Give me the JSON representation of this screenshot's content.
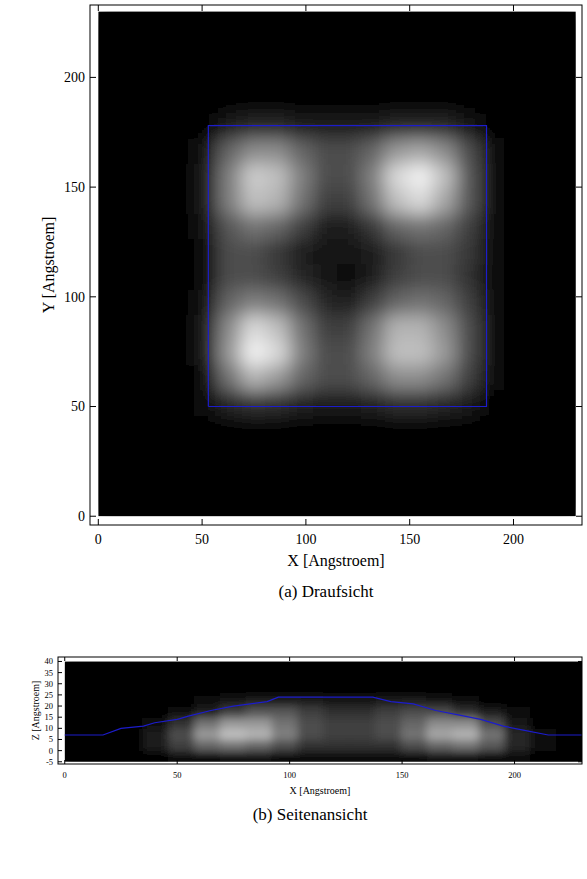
{
  "chart_data": [
    {
      "type": "heatmap",
      "caption": "(a) Draufsicht",
      "x_label": "X [Angstroem]",
      "y_label": "Y [Angstroem]",
      "xlim": [
        -4,
        233
      ],
      "ylim": [
        -4,
        233
      ],
      "xticks": [
        0,
        50,
        100,
        150,
        200
      ],
      "yticks": [
        0,
        50,
        100,
        150,
        200
      ],
      "x_extent": [
        0,
        230
      ],
      "y_extent": [
        0,
        230
      ],
      "cells": [
        [
          0,
          0,
          0,
          0,
          0,
          0,
          0,
          0,
          0,
          0,
          0,
          0,
          0,
          0,
          0,
          0,
          0,
          0,
          0,
          0
        ],
        [
          0,
          0,
          0,
          0,
          0,
          0,
          0,
          0,
          0,
          0,
          0,
          0,
          0,
          0,
          0,
          0,
          0,
          0,
          0,
          0
        ],
        [
          0,
          0,
          0,
          0,
          0,
          0,
          0,
          0,
          0,
          0,
          0,
          0,
          0,
          0,
          0,
          0,
          0,
          0,
          0,
          0
        ],
        [
          0,
          0,
          0,
          0,
          0,
          0,
          0,
          0,
          0,
          0,
          0,
          0,
          0,
          0,
          0,
          0,
          0,
          0,
          0,
          0
        ],
        [
          0,
          0,
          0,
          0,
          0.03,
          0.15,
          0.2,
          0.18,
          0.13,
          0.1,
          0.1,
          0.13,
          0.18,
          0.18,
          0.15,
          0.1,
          0.02,
          0,
          0,
          0
        ],
        [
          0,
          0,
          0,
          0,
          0.05,
          0.45,
          0.7,
          0.6,
          0.4,
          0.3,
          0.3,
          0.4,
          0.55,
          0.55,
          0.45,
          0.25,
          0.03,
          0,
          0,
          0
        ],
        [
          0,
          0,
          0,
          0,
          0.1,
          0.6,
          0.95,
          0.85,
          0.5,
          0.3,
          0.3,
          0.5,
          0.75,
          0.75,
          0.6,
          0.3,
          0.05,
          0,
          0,
          0
        ],
        [
          0,
          0,
          0,
          0,
          0.1,
          0.55,
          0.85,
          0.75,
          0.45,
          0.25,
          0.25,
          0.45,
          0.7,
          0.7,
          0.55,
          0.3,
          0.05,
          0,
          0,
          0
        ],
        [
          0,
          0,
          0,
          0,
          0.08,
          0.4,
          0.5,
          0.45,
          0.3,
          0.15,
          0.12,
          0.25,
          0.4,
          0.45,
          0.4,
          0.25,
          0.04,
          0,
          0,
          0
        ],
        [
          0,
          0,
          0,
          0,
          0.06,
          0.3,
          0.3,
          0.25,
          0.15,
          0.08,
          0.06,
          0.12,
          0.25,
          0.3,
          0.3,
          0.2,
          0.03,
          0,
          0,
          0
        ],
        [
          0,
          0,
          0,
          0,
          0.06,
          0.3,
          0.3,
          0.22,
          0.12,
          0.07,
          0.08,
          0.12,
          0.22,
          0.3,
          0.3,
          0.22,
          0.03,
          0,
          0,
          0
        ],
        [
          0,
          0,
          0,
          0,
          0.07,
          0.35,
          0.45,
          0.4,
          0.25,
          0.12,
          0.12,
          0.22,
          0.4,
          0.45,
          0.4,
          0.25,
          0.04,
          0,
          0,
          0
        ],
        [
          0,
          0,
          0,
          0,
          0.1,
          0.5,
          0.75,
          0.7,
          0.45,
          0.25,
          0.25,
          0.45,
          0.75,
          0.85,
          0.65,
          0.35,
          0.05,
          0,
          0,
          0
        ],
        [
          0,
          0,
          0,
          0,
          0.1,
          0.5,
          0.8,
          0.75,
          0.5,
          0.3,
          0.3,
          0.5,
          0.85,
          0.95,
          0.75,
          0.35,
          0.05,
          0,
          0,
          0
        ],
        [
          0,
          0,
          0,
          0,
          0.08,
          0.4,
          0.55,
          0.55,
          0.4,
          0.3,
          0.3,
          0.4,
          0.6,
          0.65,
          0.55,
          0.3,
          0.04,
          0,
          0,
          0
        ],
        [
          0,
          0,
          0,
          0,
          0.02,
          0.1,
          0.15,
          0.15,
          0.12,
          0.1,
          0.1,
          0.12,
          0.15,
          0.15,
          0.15,
          0.08,
          0.01,
          0,
          0,
          0
        ],
        [
          0,
          0,
          0,
          0,
          0,
          0,
          0,
          0,
          0,
          0,
          0,
          0,
          0,
          0,
          0,
          0,
          0,
          0,
          0,
          0
        ],
        [
          0,
          0,
          0,
          0,
          0,
          0,
          0,
          0,
          0,
          0,
          0,
          0,
          0,
          0,
          0,
          0,
          0,
          0,
          0,
          0
        ],
        [
          0,
          0,
          0,
          0,
          0,
          0,
          0,
          0,
          0,
          0,
          0,
          0,
          0,
          0,
          0,
          0,
          0,
          0,
          0,
          0
        ],
        [
          0,
          0,
          0,
          0,
          0,
          0,
          0,
          0,
          0,
          0,
          0,
          0,
          0,
          0,
          0,
          0,
          0,
          0,
          0,
          0
        ]
      ],
      "outline": {
        "x": [
          53,
          187,
          187,
          53,
          53
        ],
        "y": [
          50,
          50,
          178,
          178,
          50
        ],
        "color": "#1c1ccc"
      }
    },
    {
      "type": "heatmap",
      "caption": "(b) Seitenansicht",
      "x_label": "X [Angstroem]",
      "y_label": "Z [Angstroem]",
      "xlim": [
        -3,
        230
      ],
      "ylim": [
        -6,
        42
      ],
      "xticks": [
        0,
        50,
        100,
        150,
        200
      ],
      "yticks": [
        -5,
        0,
        5,
        10,
        15,
        20,
        25,
        30,
        35,
        40
      ],
      "x_extent": [
        0,
        230
      ],
      "y_extent": [
        -5,
        40
      ],
      "cells": [
        [
          0,
          0,
          0,
          0.02,
          0.04,
          0.06,
          0.08,
          0.08,
          0.06,
          0.05,
          0.05,
          0.05,
          0.05,
          0.06,
          0.08,
          0.08,
          0.06,
          0.04,
          0,
          0
        ],
        [
          0,
          0,
          0,
          0.1,
          0.25,
          0.4,
          0.45,
          0.4,
          0.3,
          0.2,
          0.2,
          0.2,
          0.2,
          0.3,
          0.4,
          0.45,
          0.35,
          0.15,
          0.03,
          0
        ],
        [
          0,
          0,
          0,
          0.1,
          0.3,
          0.6,
          0.75,
          0.7,
          0.5,
          0.3,
          0.25,
          0.25,
          0.3,
          0.45,
          0.65,
          0.7,
          0.45,
          0.15,
          0.03,
          0
        ],
        [
          0,
          0,
          0,
          0.05,
          0.2,
          0.45,
          0.6,
          0.6,
          0.45,
          0.3,
          0.25,
          0.25,
          0.3,
          0.4,
          0.55,
          0.55,
          0.3,
          0.08,
          0,
          0
        ],
        [
          0,
          0,
          0,
          0,
          0.05,
          0.12,
          0.25,
          0.35,
          0.35,
          0.25,
          0.2,
          0.2,
          0.25,
          0.3,
          0.3,
          0.2,
          0.1,
          0.03,
          0,
          0
        ],
        [
          0,
          0,
          0,
          0,
          0,
          0.03,
          0.08,
          0.12,
          0.12,
          0.1,
          0.08,
          0.08,
          0.1,
          0.1,
          0.08,
          0.05,
          0.02,
          0,
          0,
          0
        ],
        [
          0,
          0,
          0,
          0,
          0,
          0,
          0,
          0,
          0,
          0,
          0,
          0,
          0,
          0,
          0,
          0,
          0,
          0,
          0,
          0
        ],
        [
          0,
          0,
          0,
          0,
          0,
          0,
          0,
          0,
          0,
          0,
          0,
          0,
          0,
          0,
          0,
          0,
          0,
          0,
          0,
          0
        ],
        [
          0,
          0,
          0,
          0,
          0,
          0,
          0,
          0,
          0,
          0,
          0,
          0,
          0,
          0,
          0,
          0,
          0,
          0,
          0,
          0
        ]
      ],
      "outline": {
        "x": [
          0,
          17,
          25,
          35,
          40,
          50,
          55,
          65,
          75,
          90,
          95,
          137,
          145,
          155,
          165,
          175,
          185,
          195,
          205,
          215,
          230
        ],
        "y": [
          7,
          7,
          10,
          11,
          12.5,
          14,
          15.5,
          18,
          20,
          22,
          24,
          24,
          22,
          21,
          18,
          16,
          14,
          11,
          9,
          7,
          7
        ],
        "color": "#1c1ccc"
      }
    }
  ]
}
